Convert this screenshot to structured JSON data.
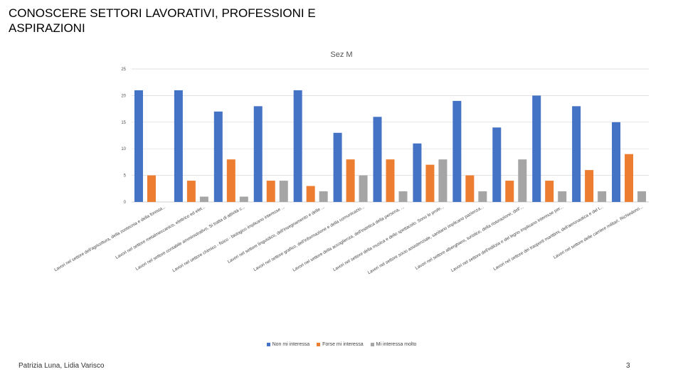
{
  "slide": {
    "title": "CONOSCERE SETTORI LAVORATIVI, PROFESSIONI E ASPIRAZIONI",
    "author": "Patrizia Luna, Lidia Varisco",
    "page_number": "3"
  },
  "chart_data": {
    "type": "bar",
    "title": "Sez M",
    "ylim": [
      0,
      25
    ],
    "yticks": [
      0,
      5,
      10,
      15,
      20,
      25
    ],
    "grid": true,
    "legend_position": "bottom",
    "categories": [
      "Lavori nel settore dell'agricoltura, della zootecnia e della foresta...",
      "Lavori nel settore metalmeccanico, elettrico ed elet...",
      "Lavori nel settore contabile amministrativo, Si tratta di attività c...",
      "Lavori nel settore chimico - fisico - biologico implicano interesse ...",
      "Lavori nel settore linguistico, dell'insegnamento e delle ...",
      "Lavori nel settore grafico, dell'informazione e della comunicazio...",
      "Lavori nel settore della accoglienza, dell'estetica della persona, ...",
      "Lavori nel settore della musica e dello spettacolo. Sono le profe...",
      "Lavori nel settore socio assistenziale, sanitario implicano pazienza...",
      "Lavori nel settore alberghiero, turistico, della ristorazione, dell'...",
      "Lavori nel settore dell'edilizia e del legno implicano interesse per...",
      "Lavori nel settore dei trasporti marittimi, dell'aeronautica e del t...",
      "Lavori nel settore delle carriere militari. Richiedono..."
    ],
    "series": [
      {
        "name": "Non mi interessa",
        "color": "#4472c4",
        "values": [
          21,
          21,
          17,
          18,
          21,
          13,
          16,
          11,
          19,
          14,
          20,
          18,
          15
        ]
      },
      {
        "name": "Forse mi interessa",
        "color": "#ed7d31",
        "values": [
          5,
          4,
          8,
          4,
          3,
          8,
          8,
          7,
          5,
          4,
          4,
          6,
          9
        ]
      },
      {
        "name": "Mi interessa molto",
        "color": "#a5a5a5",
        "values": [
          0,
          1,
          1,
          4,
          2,
          5,
          2,
          8,
          2,
          8,
          2,
          2,
          2
        ]
      }
    ]
  }
}
